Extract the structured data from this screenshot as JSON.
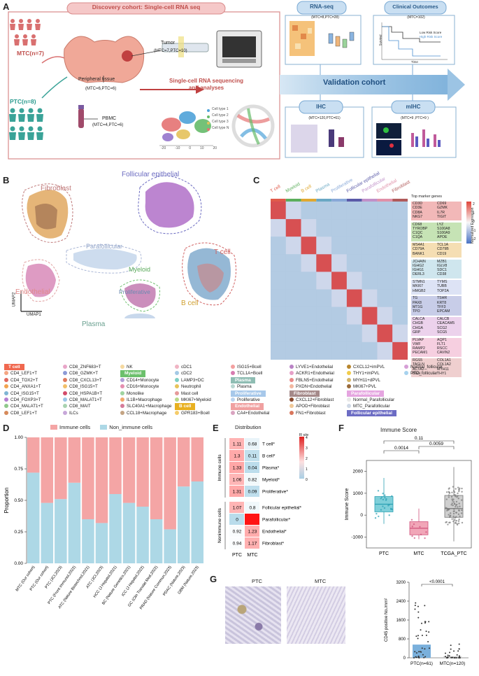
{
  "panelA": {
    "label": "A",
    "title": "Discovery cohort: Single-cell RNA seq",
    "mtc": "MTC(n=7)",
    "ptc": "PTC(n=8)",
    "tumor": "Tumor",
    "tumor_n": "(MTC=7,PTC=10)",
    "peripheral": "Peripheral tissue",
    "peripheral_n": "(MTC=6,PTC=6)",
    "pbmc": "PBMC",
    "pbmc_n": "(MTC=4,PTC=6)",
    "scseq": "Single-cell RNA sequencing and analyses",
    "cell_types": [
      "Cell type 1",
      "Cell type 2",
      "Cell type 3",
      "Cell type N"
    ],
    "umap_ticks": [
      "-20",
      "-10",
      "0",
      "10",
      "20"
    ],
    "rnaseq": "RNA-seq",
    "rnaseq_n": "(MTC=8,PTC=28)",
    "clinical": "Clinical Outcomes",
    "clinical_n": "(MTC=102)",
    "km_legend": [
      "Low Risk Score",
      "High Risk Score"
    ],
    "km_x": "Time",
    "km_y": "Survival",
    "validation": "Validation cohort",
    "ihc": "IHC",
    "ihc_n": "(MTC=120,PTC=61)",
    "mihc": "mIHC",
    "mihc_n": "(MTC=9 ,PTC=9 )"
  },
  "panelB": {
    "label": "B",
    "clusters": [
      "Follicular epithelial",
      "Fibroblast",
      "T cell",
      "Parafollicular",
      "Myeloid",
      "Endothelial",
      "Proliferative",
      "B cell",
      "Plasma"
    ],
    "umap1": "UMAP1",
    "umap2": "UMAP2"
  },
  "panelC": {
    "label": "C",
    "columns": [
      "T cell",
      "Myeloid",
      "B cell",
      "Plasma",
      "Proliferative",
      "Follicular epithelial",
      "Parafollicular",
      "Endothelial",
      "Fibroblast"
    ],
    "top_marker_title": "Top marker genes",
    "legend_title": "Normalized Expression",
    "legend_ticks": [
      "2",
      "1",
      "0",
      "-1",
      "-2"
    ],
    "marker_groups": [
      {
        "left": [
          "CD3D",
          "CD3E",
          "CD8A",
          "NKG7"
        ],
        "right": [
          "CD69",
          "GZMK",
          "IL7R",
          "TIGIT"
        ],
        "color": "#f2b8b8"
      },
      {
        "left": [
          "CD68",
          "TYROBP",
          "C1QC",
          "C1QA"
        ],
        "right": [
          "LYZ",
          "S100A8",
          "S100A9",
          "APOE"
        ],
        "color": "#c6e3b5"
      },
      {
        "left": [
          "MS4A1",
          "CD79A",
          "BANK1"
        ],
        "right": [
          "TCL1A",
          "CD79B",
          "CD19"
        ],
        "color": "#f5deb3"
      },
      {
        "left": [
          "JCHAIN",
          "IGHG2",
          "IGHG1",
          "DERL3"
        ],
        "right": [
          "MZB1",
          "IGLV8",
          "SDC1",
          "CD38"
        ],
        "color": "#cfe6ee"
      },
      {
        "left": [
          "STMN1",
          "MKI67",
          "HMGB2"
        ],
        "right": [
          "TYMS",
          "TUBB",
          "TOP2A"
        ],
        "color": "#dde3f5"
      },
      {
        "left": [
          "TG",
          "PAX8",
          "MT1G",
          "TPO"
        ],
        "right": [
          "TSHR",
          "KRT8",
          "TFF3",
          "EPCAM"
        ],
        "color": "#c8cde8"
      },
      {
        "left": [
          "CALCA",
          "CHGB",
          "CHGA",
          "GRP"
        ],
        "right": [
          "CALCB",
          "CEACAM5",
          "SCG2",
          "SCG5"
        ],
        "color": "#ecd2ec"
      },
      {
        "left": [
          "PLVAP",
          "VWF",
          "RAMP2",
          "PECAM1"
        ],
        "right": [
          "AQP1",
          "FLT1",
          "RSCC",
          "CAVIN2"
        ],
        "color": "#f6cfe0"
      },
      {
        "left": [
          "RGS5",
          "TAGLN",
          "ACTA2",
          "BGN"
        ],
        "right": [
          "COL1A1",
          "COL1A2",
          "MYH11",
          "THY1"
        ],
        "color": "#efcfcf"
      }
    ]
  },
  "legend": {
    "col1": [
      {
        "header": "T cell",
        "color": "#f0684f"
      },
      {
        "text": "CD4_LEF1+T",
        "color": "#f4a582"
      },
      {
        "text": "CD4_TOX2+T",
        "color": "#e0685f"
      },
      {
        "text": "CD4_ANXA1+T",
        "color": "#f2a34f"
      },
      {
        "text": "CD4_ISG15+T",
        "color": "#7fb5d5"
      },
      {
        "text": "CD4_FOXP3+T",
        "color": "#b57fd2"
      },
      {
        "text": "CD4_MALAT1+T",
        "color": "#8fc98b"
      },
      {
        "text": "CD8_LEF1+T",
        "color": "#d68a5a"
      }
    ],
    "col2": [
      {
        "text": "CD8_ZNF683+T",
        "color": "#e8a5c8"
      },
      {
        "text": "CD8_GZMK+T",
        "color": "#8c9ad6"
      },
      {
        "text": "CD8_CXCL13+T",
        "color": "#e07b5f"
      },
      {
        "text": "CD8_ISG15+T",
        "color": "#f2c06a"
      },
      {
        "text": "CD8_HSPA1B+T",
        "color": "#d34b6a"
      },
      {
        "text": "CD8_MALAT1+T",
        "color": "#9bc6e8"
      },
      {
        "text": "CD8_MAIT",
        "color": "#a8d3b0"
      },
      {
        "text": "ILCs",
        "color": "#c7a7d9"
      }
    ],
    "col3": [
      {
        "text": "NK",
        "color": "#f5d9a0"
      },
      {
        "header": "Myeloid",
        "color": "#6cc06c"
      },
      {
        "text": "CD14+Monocyte",
        "color": "#b0a0d8"
      },
      {
        "text": "CD16+Monocyte",
        "color": "#e58fb0"
      },
      {
        "text": "Monolike",
        "color": "#9fd4a0"
      },
      {
        "text": "IL1B+Macrophage",
        "color": "#f2a96b"
      },
      {
        "text": "SLC40A1+Macrophage",
        "color": "#d57c9a"
      },
      {
        "text": "CCL18+Macrophage",
        "color": "#c4a484"
      }
    ],
    "col4": [
      {
        "text": "cDC1",
        "color": "#f0b4c4"
      },
      {
        "text": "cDC2",
        "color": "#a3c9e5"
      },
      {
        "text": "LAMP3+DC",
        "color": "#7ecfc4"
      },
      {
        "text": "Neutrophil",
        "color": "#e7c35a"
      },
      {
        "text": "Mast cell",
        "color": "#e69a9a"
      },
      {
        "text": "MKI67+Myeloid",
        "color": "#b8d98a"
      },
      {
        "header": "B cell",
        "color": "#e8b020"
      },
      {
        "text": "GPR183+Bcell",
        "color": "#f5cc6a"
      }
    ],
    "col5": [
      {
        "text": "ISG15+Bcell",
        "color": "#f3a0a0"
      },
      {
        "text": "TCL1A+Bcell",
        "color": "#d77bb0"
      },
      {
        "header": "Plasma",
        "color": "#8fbdb3"
      },
      {
        "text": "Plasma",
        "color": "#b8d6d0"
      },
      {
        "header": "Proliferative",
        "color": "#a7c8ea"
      },
      {
        "text": "Proliferative",
        "color": "#bcd4ee"
      },
      {
        "header": "Endothelial",
        "color": "#f0a0a0"
      },
      {
        "text": "CA4+Endothelial",
        "color": "#d9a3c0"
      }
    ],
    "col6": [
      {
        "text": "LYVE1+Endothelial",
        "color": "#b982c5"
      },
      {
        "text": "ACKR1+Endothelial",
        "color": "#e6a0c8"
      },
      {
        "text": "FBLN5+Endothelial",
        "color": "#e88a8a"
      },
      {
        "text": "PXDN+Endothelial",
        "color": "#f2b7a0"
      },
      {
        "header": "Fibroblast",
        "color": "#a58a8a"
      },
      {
        "text": "CXCL12+Fibroblast",
        "color": "#8a4a2f"
      },
      {
        "text": "APOD+Fibroblast",
        "color": "#f0c898"
      },
      {
        "text": "FN1+Fibroblast",
        "color": "#d8765c"
      }
    ],
    "col7": [
      {
        "text": "CXCL12+imPVL",
        "color": "#b8862e"
      },
      {
        "text": "THY1+imPVL",
        "color": "#f1cc4a"
      },
      {
        "text": "MYH11+dPVL",
        "color": "#d4b56a"
      },
      {
        "text": "MKI67+PVL",
        "color": "#9a6b3a"
      },
      {
        "header": "Parafollicular",
        "color": "#e5a5e0"
      },
      {
        "text": "Normal_Parafollicular",
        "color": "#e8e8e8"
      },
      {
        "text": "MTC_Parafollicular",
        "color": "#cfd8e6"
      },
      {
        "header": "Follicular epithelial",
        "color": "#6c6cc4"
      }
    ],
    "col8": [
      {
        "text": "Normal_follicular",
        "color": "#d69fd6"
      },
      {
        "text": "PTC_follicular",
        "color": "#a7d2ee"
      }
    ]
  },
  "panelD": {
    "label": "D",
    "legend": [
      "Immune cells",
      "Non_immune cells"
    ],
    "ylabel": "Proportion",
    "yticks": [
      "1.00",
      "0.75",
      "0.50",
      "0.25",
      "0.00"
    ],
    "chart_data": {
      "type": "bar",
      "title": "",
      "ylabel": "Proportion",
      "ylim": [
        0,
        1
      ],
      "categories": [
        "MTC (Our cohort)",
        "PTC (Our cohort)",
        "PTC (JCI,2023)",
        "PTC (Front Immunol,2022)",
        "ATC (Nature Biotechnol,2021)",
        "ATC (JCI,2023)",
        "HCC (J Hepatol,2021)",
        "BC (Nature Genetics,2021)",
        "ICC (J Hepatol,2022)",
        "GC (Clin Translat Med,2022)",
        "PRAD (Nature Commun,2023)",
        "PDAC (Nature,2023)",
        "GBM (Nature,2023)"
      ],
      "series": [
        {
          "name": "Non_immune cells",
          "values": [
            0.72,
            0.48,
            0.51,
            0.64,
            0.35,
            0.32,
            0.55,
            0.48,
            0.45,
            0.35,
            0.27,
            0.61,
            0.65
          ]
        },
        {
          "name": "Immune cells",
          "values": [
            0.28,
            0.52,
            0.49,
            0.36,
            0.65,
            0.68,
            0.45,
            0.52,
            0.55,
            0.65,
            0.73,
            0.39,
            0.35
          ]
        }
      ]
    }
  },
  "panelE": {
    "label": "E",
    "title": "Distribution",
    "legend_title": "R o/e",
    "legend_ticks": [
      "4",
      "3",
      "2",
      "1",
      "0"
    ],
    "xlabels": [
      "PTC",
      "MTC"
    ],
    "immune_group": "Immune cells",
    "nonimmune_group": "Nonimmune cells",
    "chart_data": {
      "type": "heatmap",
      "columns": [
        "PTC",
        "MTC"
      ],
      "rows": [
        "T cell*",
        "B cell*",
        "Plasma*",
        "Myeloid*",
        "Proliferative*",
        "Follicular epithelial*",
        "Parafollicular*",
        "Endothelial*",
        "Fibroblast*"
      ],
      "values": [
        [
          1.11,
          0.68
        ],
        [
          1.3,
          0.11
        ],
        [
          1.33,
          0.04
        ],
        [
          1.06,
          0.82
        ],
        [
          1.31,
          0.09
        ],
        [
          1.07,
          0.8
        ],
        [
          0,
          4.67
        ],
        [
          0.92,
          1.23
        ],
        [
          0.94,
          1.17
        ]
      ],
      "value_labels": [
        [
          "1.11",
          "0.68"
        ],
        [
          "1.3",
          "0.11"
        ],
        [
          "1.33",
          "0.04"
        ],
        [
          "1.06",
          "0.82"
        ],
        [
          "1.31",
          "0.09"
        ],
        [
          "1.07",
          "0.8"
        ],
        [
          "0",
          ""
        ],
        [
          "0.92",
          "1.23"
        ],
        [
          "0.94",
          "1.17"
        ]
      ],
      "scale": [
        0,
        4
      ]
    }
  },
  "panelF": {
    "label": "F",
    "title": "Immune Score",
    "ylabel": "Immune Score",
    "yticks": [
      "2000",
      "1000",
      "0",
      "-1000"
    ],
    "pvals": [
      "0.11",
      "0.0014",
      "0.0059"
    ],
    "chart_data": {
      "type": "box",
      "categories": [
        "PTC",
        "MTC",
        "TCGA_PTC"
      ],
      "ylim": [
        -1500,
        2500
      ],
      "boxes": [
        {
          "name": "PTC",
          "q1": 150,
          "median": 500,
          "q3": 850,
          "min": -400,
          "max": 1700
        },
        {
          "name": "MTC",
          "q1": -900,
          "median": -600,
          "q3": -300,
          "min": -1100,
          "max": 300
        },
        {
          "name": "TCGA_PTC",
          "q1": -100,
          "median": 300,
          "q3": 900,
          "min": -1200,
          "max": 2200
        }
      ]
    }
  },
  "panelG": {
    "label": "G",
    "ptc": "PTC",
    "mtc": "MTC",
    "ylabel": "CD45 positive No./mm²",
    "yticks": [
      "3200",
      "2400",
      "1600",
      "800",
      "0"
    ],
    "pval": "<0.0001",
    "chart_data": {
      "type": "bar",
      "categories": [
        "PTC(n=61)",
        "MTC(n=120)"
      ],
      "values": [
        560,
        60
      ],
      "ylim": [
        0,
        3200
      ]
    }
  }
}
